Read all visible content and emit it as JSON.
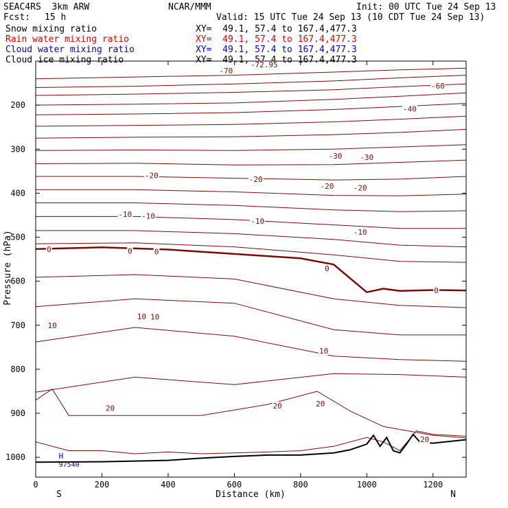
{
  "header": {
    "model": "SEAC4RS  3km ARW",
    "org": "NCAR/MMM",
    "init": "Init: 00 UTC Tue 24 Sep 13",
    "fcst_label": "Fcst:",
    "fcst_value": "15 h",
    "valid": "Valid: 15 UTC Tue 24 Sep 13 (10 CDT Tue 24 Sep 13)"
  },
  "fields": [
    {
      "name": "Snow mixing ratio",
      "xy": "XY=  49.1, 57.4 to 167.4,477.3",
      "color": "#000000"
    },
    {
      "name": "Rain water mixing ratio",
      "xy": "XY=  49.1, 57.4 to 167.4,477.3",
      "color": "#dd0000"
    },
    {
      "name": "Cloud water mixing ratio",
      "xy": "XY=  49.1, 57.4 to 167.4,477.3",
      "color": "#0000cc"
    },
    {
      "name": "Cloud ice mixing ratio",
      "xy": "XY=  49.1, 57.4 to 167.4,477.3",
      "color": "#000000"
    }
  ],
  "chart_data": {
    "type": "line",
    "xlabel": "Distance (km)",
    "ylabel": "Pressure (hPa)",
    "xlim": [
      0,
      1300
    ],
    "ylim": [
      1045,
      100
    ],
    "x_ticks": [
      0,
      200,
      400,
      600,
      800,
      1000,
      1200
    ],
    "y_ticks": [
      200,
      300,
      400,
      500,
      600,
      700,
      800,
      900,
      1000
    ],
    "left_end_label": "S",
    "right_end_label": "N",
    "contour_color": "#7a0a0a",
    "terrain_color": "#000000",
    "high_marker": {
      "letter": "H",
      "value": "97540",
      "x": 80,
      "p": 1006,
      "color": "#0000cc"
    },
    "contours": [
      {
        "x": [
          0,
          300,
          600,
          900,
          1100,
          1300
        ],
        "p": [
          140,
          136,
          132,
          125,
          120,
          116
        ]
      },
      {
        "x": [
          0,
          300,
          600,
          900,
          1100,
          1300
        ],
        "p": [
          160,
          157,
          152,
          145,
          138,
          132
        ]
      },
      {
        "x": [
          0,
          300,
          600,
          900,
          1100,
          1300
        ],
        "p": [
          178,
          175,
          171,
          165,
          158,
          152
        ]
      },
      {
        "x": [
          0,
          300,
          600,
          900,
          1100,
          1300
        ],
        "p": [
          200,
          198,
          195,
          187,
          180,
          172
        ]
      },
      {
        "x": [
          0,
          300,
          600,
          900,
          1100,
          1300
        ],
        "p": [
          222,
          220,
          217,
          210,
          203,
          196
        ]
      },
      {
        "x": [
          0,
          300,
          600,
          900,
          1100,
          1300
        ],
        "p": [
          248,
          246,
          244,
          238,
          232,
          225
        ]
      },
      {
        "x": [
          0,
          300,
          600,
          900,
          1100,
          1300
        ],
        "p": [
          275,
          273,
          272,
          267,
          262,
          255
        ]
      },
      {
        "x": [
          0,
          300,
          600,
          900,
          1100,
          1300
        ],
        "p": [
          303,
          302,
          303,
          300,
          295,
          290
        ]
      },
      {
        "x": [
          0,
          300,
          600,
          900,
          1100,
          1300
        ],
        "p": [
          333,
          332,
          336,
          335,
          330,
          325
        ]
      },
      {
        "x": [
          0,
          300,
          600,
          900,
          1100,
          1300
        ],
        "p": [
          362,
          362,
          366,
          370,
          368,
          362
        ]
      },
      {
        "x": [
          0,
          300,
          600,
          900,
          1100,
          1300
        ],
        "p": [
          392,
          392,
          397,
          405,
          406,
          402
        ]
      },
      {
        "x": [
          0,
          300,
          600,
          900,
          1100,
          1300
        ],
        "p": [
          422,
          422,
          428,
          438,
          442,
          440
        ]
      },
      {
        "x": [
          0,
          300,
          600,
          900,
          1100,
          1300
        ],
        "p": [
          453,
          453,
          460,
          472,
          480,
          480
        ]
      },
      {
        "x": [
          0,
          300,
          600,
          900,
          1100,
          1300
        ],
        "p": [
          485,
          485,
          492,
          505,
          518,
          522
        ]
      },
      {
        "x": [
          0,
          300,
          600,
          900,
          1100,
          1300
        ],
        "p": [
          515,
          513,
          522,
          540,
          555,
          557
        ]
      },
      {
        "x": [
          0,
          300,
          600,
          900,
          1100,
          1300
        ],
        "p": [
          591,
          585,
          595,
          640,
          655,
          660
        ]
      },
      {
        "x": [
          0,
          300,
          600,
          900,
          1100,
          1300
        ],
        "p": [
          658,
          640,
          650,
          710,
          722,
          722
        ]
      },
      {
        "x": [
          0,
          300,
          600,
          900,
          1100,
          1300
        ],
        "p": [
          738,
          705,
          725,
          770,
          778,
          782
        ]
      },
      {
        "x": [
          0,
          300,
          600,
          900,
          1100,
          1300
        ],
        "p": [
          852,
          818,
          835,
          810,
          812,
          818
        ]
      },
      {
        "x": [
          0,
          50,
          100,
          300,
          500,
          700,
          850,
          950,
          1050,
          1200,
          1300
        ],
        "p": [
          870,
          845,
          905,
          905,
          905,
          880,
          850,
          895,
          930,
          950,
          956
        ]
      }
    ],
    "zero_isotherm": {
      "x": [
        0,
        200,
        400,
        600,
        800,
        900,
        960,
        1000,
        1050,
        1100,
        1200,
        1300
      ],
      "p": [
        527,
        523,
        528,
        538,
        548,
        562,
        600,
        625,
        617,
        622,
        620,
        621
      ]
    },
    "surface_contour": {
      "x": [
        0,
        50,
        100,
        200,
        300,
        400,
        500,
        600,
        700,
        800,
        900,
        1000,
        1050,
        1100,
        1150,
        1200,
        1300
      ],
      "p": [
        965,
        975,
        985,
        985,
        992,
        988,
        992,
        990,
        988,
        985,
        975,
        955,
        965,
        985,
        940,
        948,
        952
      ]
    },
    "terrain": {
      "x": [
        0,
        200,
        400,
        500,
        600,
        700,
        800,
        900,
        950,
        1000,
        1020,
        1040,
        1060,
        1080,
        1100,
        1120,
        1140,
        1160,
        1200,
        1300
      ],
      "p": [
        1011,
        1010,
        1007,
        1002,
        998,
        995,
        995,
        990,
        983,
        970,
        950,
        975,
        955,
        985,
        990,
        970,
        948,
        965,
        968,
        960
      ]
    },
    "contour_labels": [
      {
        "text": "-72.95",
        "x": 690,
        "p": 108
      },
      {
        "text": "-70",
        "x": 575,
        "p": 122
      },
      {
        "text": "-60",
        "x": 1215,
        "p": 156
      },
      {
        "text": "-40",
        "x": 1130,
        "p": 208
      },
      {
        "text": "-30",
        "x": 905,
        "p": 315
      },
      {
        "text": "-30",
        "x": 1000,
        "p": 318
      },
      {
        "text": "-20",
        "x": 350,
        "p": 360
      },
      {
        "text": "-20",
        "x": 665,
        "p": 368
      },
      {
        "text": "-20",
        "x": 880,
        "p": 384
      },
      {
        "text": "-20",
        "x": 980,
        "p": 388
      },
      {
        "text": "-10",
        "x": 270,
        "p": 448
      },
      {
        "text": "-10",
        "x": 340,
        "p": 452
      },
      {
        "text": "-10",
        "x": 670,
        "p": 463
      },
      {
        "text": "-10",
        "x": 980,
        "p": 488
      },
      {
        "text": "0",
        "x": 40,
        "p": 527
      },
      {
        "text": "0",
        "x": 285,
        "p": 531
      },
      {
        "text": "0",
        "x": 365,
        "p": 533
      },
      {
        "text": "0",
        "x": 880,
        "p": 571
      },
      {
        "text": "0",
        "x": 1210,
        "p": 621
      },
      {
        "text": "10",
        "x": 50,
        "p": 700
      },
      {
        "text": "10",
        "x": 320,
        "p": 680
      },
      {
        "text": "10",
        "x": 360,
        "p": 681
      },
      {
        "text": "10",
        "x": 870,
        "p": 758
      },
      {
        "text": "20",
        "x": 225,
        "p": 888
      },
      {
        "text": "20",
        "x": 730,
        "p": 883
      },
      {
        "text": "20",
        "x": 860,
        "p": 878
      },
      {
        "text": "20",
        "x": 1175,
        "p": 959
      }
    ]
  }
}
